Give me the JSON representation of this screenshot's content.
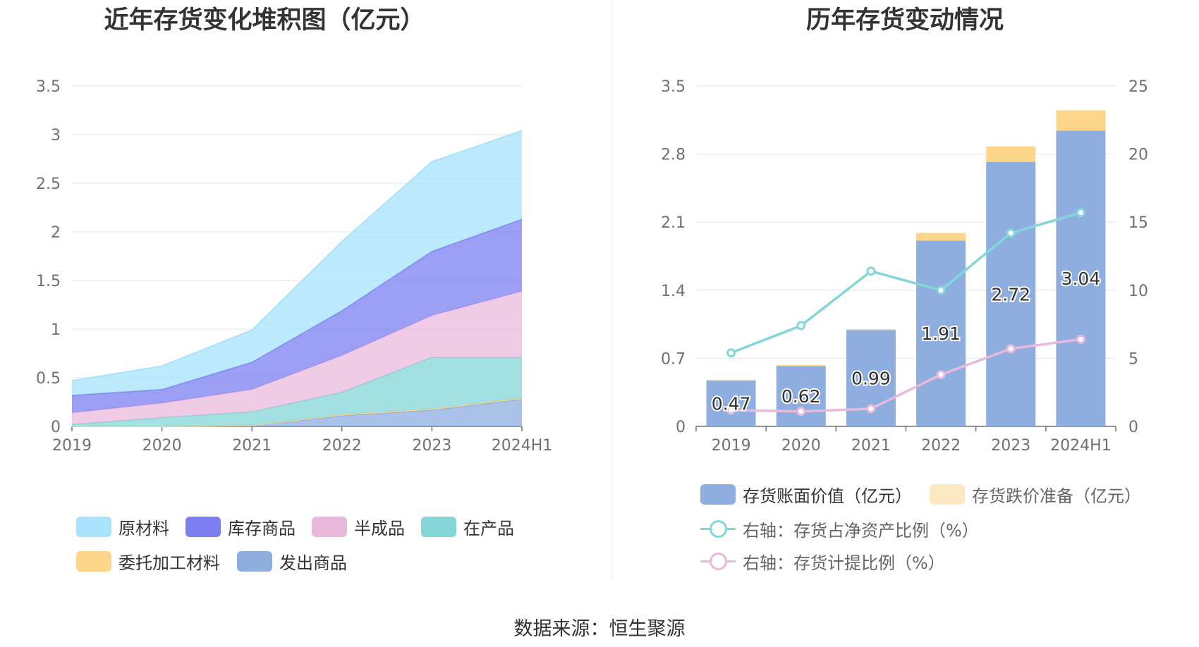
{
  "left_title": "近年存货变化堆积图（亿元）",
  "right_title": "历年存货变动情况",
  "source": "数据来源：恒生聚源",
  "colors": {
    "raw_materials": "#a7e3fb",
    "stock_goods": "#7b7ff0",
    "semi_finished": "#e9b9dc",
    "in_production": "#84d6d8",
    "outsourced": "#fdd68c",
    "shipped": "#8eaedf",
    "bar_book": "#8eaedf",
    "bar_reserve": "#fdd68c",
    "line_ratio": "#84d6d8",
    "line_provision": "#e9b9dc"
  },
  "left_legend": [
    {
      "label": "原材料",
      "color": "#a7e3fb"
    },
    {
      "label": "库存商品",
      "color": "#7b7ff0"
    },
    {
      "label": "半成品",
      "color": "#e9b9dc"
    },
    {
      "label": "在产品",
      "color": "#84d6d8"
    },
    {
      "label": "委托加工材料",
      "color": "#fdd68c"
    },
    {
      "label": "发出商品",
      "color": "#8eaedf"
    }
  ],
  "right_legend": [
    {
      "label": "存货账面价值（亿元）",
      "color": "#8eaedf",
      "kind": "bar"
    },
    {
      "label": "存货跌价准备（亿元）",
      "color": "#fde8c4",
      "kind": "bar",
      "muted": true
    },
    {
      "label": "右轴：存货占净资产比例（%）",
      "color": "#84d6d8",
      "kind": "line",
      "muted": true
    },
    {
      "label": "右轴：存货计提比例（%）",
      "color": "#e9b9dc",
      "kind": "line",
      "muted": true
    }
  ],
  "chart_data": [
    {
      "type": "area",
      "stacked": true,
      "title": "近年存货变化堆积图（亿元）",
      "categories": [
        "2019",
        "2020",
        "2021",
        "2022",
        "2023",
        "2024H1"
      ],
      "ylim": [
        0,
        3.5
      ],
      "yticks": [
        "0",
        "0.5",
        "1",
        "1.5",
        "2",
        "2.5",
        "3",
        "3.5"
      ],
      "grid": true,
      "legend_position": "bottom",
      "series": [
        {
          "name": "发出商品",
          "values": [
            0.0,
            0.0,
            0.01,
            0.11,
            0.17,
            0.28
          ]
        },
        {
          "name": "委托加工材料",
          "values": [
            0.0,
            0.0,
            0.0,
            0.01,
            0.01,
            0.01
          ]
        },
        {
          "name": "在产品",
          "values": [
            0.02,
            0.09,
            0.14,
            0.23,
            0.53,
            0.42
          ]
        },
        {
          "name": "半成品",
          "values": [
            0.12,
            0.15,
            0.23,
            0.38,
            0.43,
            0.68
          ]
        },
        {
          "name": "库存商品",
          "values": [
            0.18,
            0.14,
            0.28,
            0.46,
            0.66,
            0.74
          ]
        },
        {
          "name": "原材料",
          "values": [
            0.15,
            0.24,
            0.33,
            0.71,
            0.92,
            0.91
          ]
        }
      ]
    },
    {
      "type": "bar",
      "title": "历年存货变动情况",
      "categories": [
        "2019",
        "2020",
        "2021",
        "2022",
        "2023",
        "2024H1"
      ],
      "ylim": [
        0,
        3.5
      ],
      "yticks": [
        "0",
        "0.7",
        "1.4",
        "2.1",
        "2.8",
        "3.5"
      ],
      "y2lim": [
        0,
        25
      ],
      "y2ticks": [
        "0",
        "5",
        "10",
        "15",
        "20",
        "25"
      ],
      "grid": true,
      "legend_position": "bottom",
      "series": [
        {
          "name": "存货账面价值（亿元）",
          "type": "bar",
          "stack": "inv",
          "values": [
            0.47,
            0.62,
            0.99,
            1.91,
            2.72,
            3.04
          ],
          "labels": [
            "0.47",
            "0.62",
            "0.99",
            "1.91",
            "2.72",
            "3.04"
          ]
        },
        {
          "name": "存货跌价准备（亿元）",
          "type": "bar",
          "stack": "inv",
          "values": [
            0.01,
            0.01,
            0.01,
            0.08,
            0.16,
            0.21
          ]
        },
        {
          "name": "右轴：存货占净资产比例（%）",
          "type": "line",
          "axis": "right",
          "values": [
            5.4,
            7.4,
            11.4,
            10.0,
            14.2,
            15.7
          ]
        },
        {
          "name": "右轴：存货计提比例（%）",
          "type": "line",
          "axis": "right",
          "values": [
            1.2,
            1.1,
            1.3,
            3.8,
            5.7,
            6.4
          ]
        }
      ]
    }
  ]
}
